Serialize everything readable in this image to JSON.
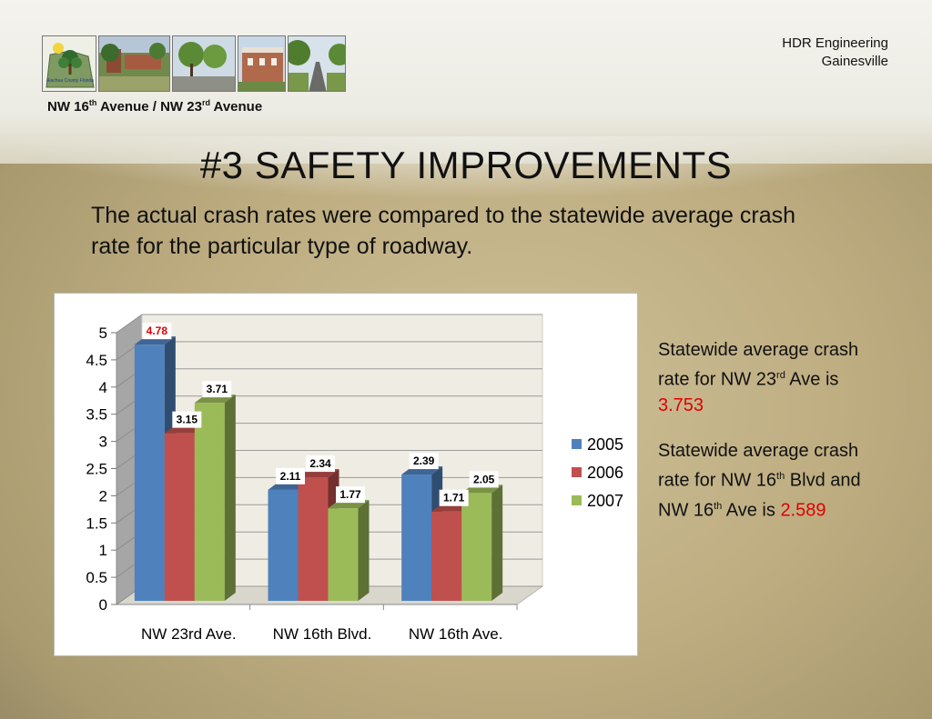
{
  "header": {
    "firm_line1": "HDR Engineering",
    "firm_line2": "Gainesville",
    "road": {
      "a_prefix": "NW 16",
      "a_sup": "th",
      "a_suffix": " Avenue / NW 23",
      "b_sup": "rd",
      "b_suffix": " Avenue"
    },
    "logo_text": "Alachua County Florida"
  },
  "title": "#3 SAFETY IMPROVEMENTS",
  "intro": "The actual crash rates were compared to the statewide average crash rate for the particular type of roadway.",
  "notes": [
    {
      "line1": "Statewide average crash",
      "line2_pre": "rate for NW 23",
      "line2_sup": "rd",
      "line2_post": " Ave is",
      "value": "3.753"
    },
    {
      "line1": "Statewide average crash",
      "line2_pre": "rate for NW 16",
      "line2_sup": "th",
      "line2_post": " Blvd and",
      "line3_pre": "NW 16",
      "line3_sup": "th",
      "line3_post": " Ave is ",
      "value": "2.589"
    }
  ],
  "chart_data": {
    "type": "bar",
    "categories": [
      "NW 23rd Ave.",
      "NW 16th Blvd.",
      "NW 16th Ave."
    ],
    "series": [
      {
        "name": "2005",
        "values": [
          4.78,
          2.11,
          2.39
        ],
        "labels": [
          "4.78",
          "2.11",
          "2.39"
        ],
        "color": "#4f81bd"
      },
      {
        "name": "2006",
        "values": [
          3.15,
          2.34,
          1.71
        ],
        "labels": [
          "3.15",
          "2.34",
          "1.71"
        ],
        "color": "#c0504d"
      },
      {
        "name": "2007",
        "values": [
          3.71,
          1.77,
          2.05
        ],
        "labels": [
          "3.71",
          "1.77",
          "2.05"
        ],
        "color": "#9bbb59"
      }
    ],
    "ylim": [
      0,
      5
    ],
    "yticks": [
      "0",
      "0.5",
      "1",
      "1.5",
      "2",
      "2.5",
      "3",
      "3.5",
      "4",
      "4.5",
      "5"
    ],
    "grid": true,
    "legend": "right",
    "highlight_label_color": "#e00000",
    "wall_color": "#efece3",
    "side_wall_color": "#a6a6a6"
  }
}
